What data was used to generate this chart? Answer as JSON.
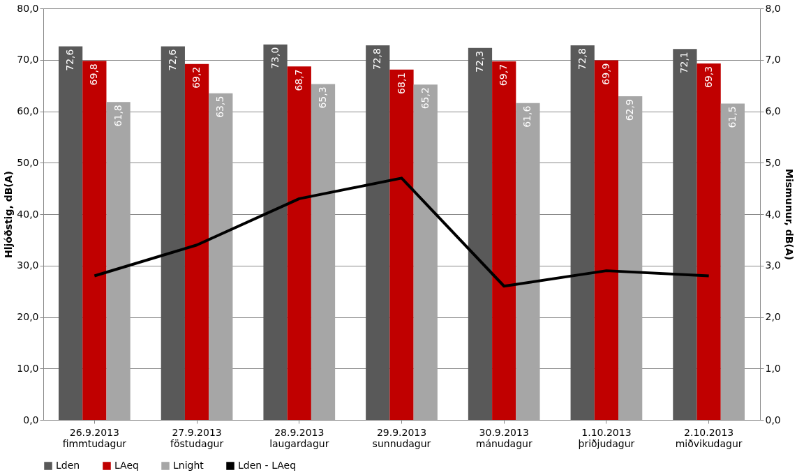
{
  "chart_data": {
    "type": "bar",
    "categories": [
      "26.9.2013\nfimmtudagur",
      "27.9.2013\nföstudagur",
      "28.9.2013\nlaugardagur",
      "29.9.2013\nsunnudagur",
      "30.9.2013\nmánudagur",
      "1.10.2013\nþriðjudagur",
      "2.10.2013\nmiðvikudagur"
    ],
    "series": [
      {
        "name": "Lden",
        "color": "#595959",
        "values": [
          72.6,
          72.6,
          73.0,
          72.8,
          72.3,
          72.8,
          72.1
        ],
        "value_labels": [
          "72,6",
          "72,6",
          "73,0",
          "72,8",
          "72,3",
          "72,8",
          "72,1"
        ]
      },
      {
        "name": "LAeq",
        "color": "#c00000",
        "values": [
          69.8,
          69.2,
          68.7,
          68.1,
          69.7,
          69.9,
          69.3
        ],
        "value_labels": [
          "69,8",
          "69,2",
          "68,7",
          "68,1",
          "69,7",
          "69,9",
          "69,3"
        ]
      },
      {
        "name": "Lnight",
        "color": "#a6a6a6",
        "values": [
          61.8,
          63.5,
          65.3,
          65.2,
          61.6,
          62.9,
          61.5
        ],
        "value_labels": [
          "61,8",
          "63,5",
          "65,3",
          "65,2",
          "61,6",
          "62,9",
          "61,5"
        ]
      },
      {
        "name": "Lden - LAeq",
        "type": "line",
        "axis": "y2",
        "color": "#000000",
        "values": [
          2.8,
          3.4,
          4.3,
          4.7,
          2.6,
          2.9,
          2.8
        ]
      }
    ],
    "ylabel": "Hljóðstig, dB(A)",
    "y2label": "Mismunur, dB(A)",
    "ylim": [
      0,
      80
    ],
    "yticks": [
      {
        "value": 0,
        "label": "0,0"
      },
      {
        "value": 10,
        "label": "10,0"
      },
      {
        "value": 20,
        "label": "20,0"
      },
      {
        "value": 30,
        "label": "30,0"
      },
      {
        "value": 40,
        "label": "40,0"
      },
      {
        "value": 50,
        "label": "50,0"
      },
      {
        "value": 60,
        "label": "60,0"
      },
      {
        "value": 70,
        "label": "70,0"
      },
      {
        "value": 80,
        "label": "80,0"
      }
    ],
    "y2lim": [
      0,
      8
    ],
    "y2ticks": [
      {
        "value": 0,
        "label": "0,0"
      },
      {
        "value": 1,
        "label": "1,0"
      },
      {
        "value": 2,
        "label": "2,0"
      },
      {
        "value": 3,
        "label": "3,0"
      },
      {
        "value": 4,
        "label": "4,0"
      },
      {
        "value": 5,
        "label": "5,0"
      },
      {
        "value": 6,
        "label": "6,0"
      },
      {
        "value": 7,
        "label": "7,0"
      },
      {
        "value": 8,
        "label": "8,0"
      }
    ],
    "grid": "y",
    "legend": "bottom",
    "marker": "none",
    "line_style": "solid"
  }
}
